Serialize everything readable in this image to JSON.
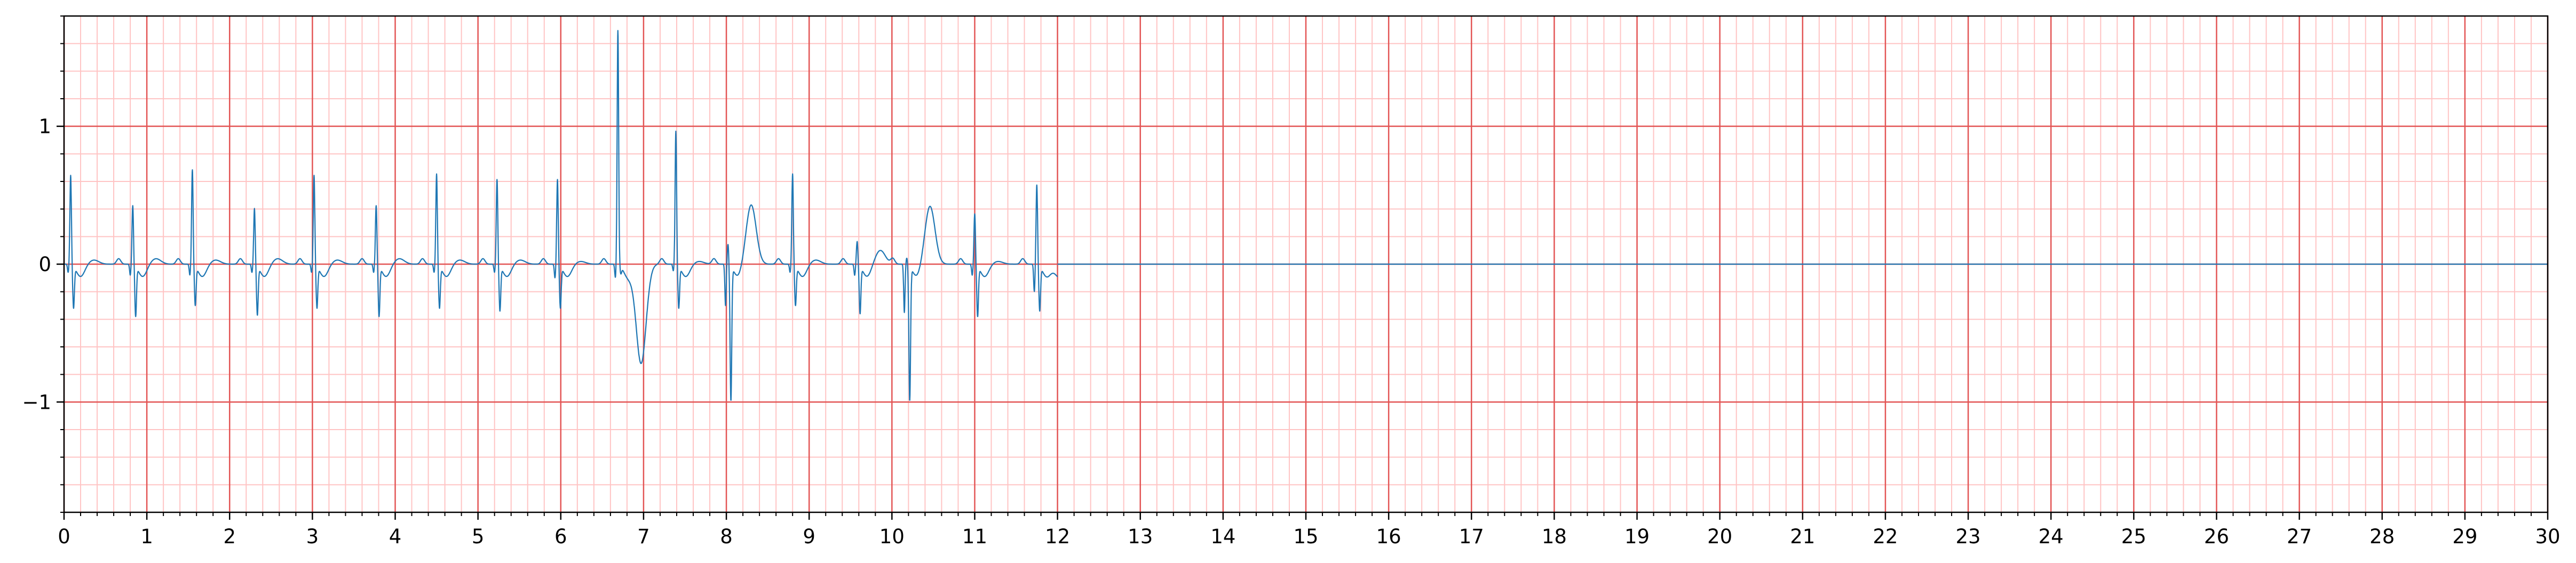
{
  "chart_data": {
    "type": "line",
    "title": "",
    "xlabel": "",
    "ylabel": "",
    "xlim": [
      0,
      30
    ],
    "ylim": [
      -1.8,
      1.8
    ],
    "x_ticks": [
      0,
      1,
      2,
      3,
      4,
      5,
      6,
      7,
      8,
      9,
      10,
      11,
      12,
      13,
      14,
      15,
      16,
      17,
      18,
      19,
      20,
      21,
      22,
      23,
      24,
      25,
      26,
      27,
      28,
      29,
      30
    ],
    "x_tick_labels": [
      "0",
      "1",
      "2",
      "3",
      "4",
      "5",
      "6",
      "7",
      "8",
      "9",
      "10",
      "11",
      "12",
      "13",
      "14",
      "15",
      "16",
      "17",
      "18",
      "19",
      "20",
      "21",
      "22",
      "23",
      "24",
      "25",
      "26",
      "27",
      "28",
      "29",
      "30"
    ],
    "y_ticks": [
      -1,
      0,
      1
    ],
    "y_tick_labels": [
      "−1",
      "0",
      "1"
    ],
    "x_major_step": 1,
    "x_minor_step": 0.2,
    "y_major_step": 1,
    "y_minor_step": 0.2,
    "grid": true,
    "colors": {
      "line": "#1f77b4",
      "grid_major": "#e35555",
      "grid_minor": "#ffc4c4",
      "axes": "#000000"
    },
    "series": [
      {
        "name": "",
        "baseline": 0,
        "beats": [
          {
            "t": 0.08,
            "r": 0.65,
            "s": -0.3,
            "q": -0.06,
            "tw": 0.03
          },
          {
            "t": 0.83,
            "r": 0.43,
            "s": -0.36,
            "q": -0.08,
            "tw": 0.04
          },
          {
            "t": 1.55,
            "r": 0.69,
            "s": -0.28,
            "q": -0.08,
            "tw": 0.03
          },
          {
            "t": 2.3,
            "r": 0.41,
            "s": -0.35,
            "q": -0.06,
            "tw": 0.04
          },
          {
            "t": 3.02,
            "r": 0.65,
            "s": -0.3,
            "q": -0.06,
            "tw": 0.03
          },
          {
            "t": 3.77,
            "r": 0.43,
            "s": -0.36,
            "q": -0.06,
            "tw": 0.04
          },
          {
            "t": 4.5,
            "r": 0.66,
            "s": -0.3,
            "q": -0.06,
            "tw": 0.03
          },
          {
            "t": 5.23,
            "r": 0.62,
            "s": -0.32,
            "q": -0.06,
            "tw": 0.03
          },
          {
            "t": 5.96,
            "r": 0.62,
            "s": -0.3,
            "q": -0.1,
            "tw": 0.02
          },
          {
            "t": 6.69,
            "r": 1.7,
            "s": -0.05,
            "q": -0.1,
            "tw": -0.72
          },
          {
            "t": 7.39,
            "r": 0.97,
            "s": -0.3,
            "q": -0.05,
            "tw": 0.02
          },
          {
            "t": 8.02,
            "r": 0.15,
            "s": -0.97,
            "q": -0.3,
            "tw": 0.43
          },
          {
            "t": 8.8,
            "r": 0.66,
            "s": -0.28,
            "q": -0.06,
            "tw": 0.03
          },
          {
            "t": 9.58,
            "r": 0.17,
            "s": -0.34,
            "q": -0.08,
            "tw": 0.1
          },
          {
            "t": 10.18,
            "r": 0.05,
            "s": -0.97,
            "q": -0.35,
            "tw": 0.42
          },
          {
            "t": 11.0,
            "r": 0.37,
            "s": -0.36,
            "q": -0.08,
            "tw": 0.02
          },
          {
            "t": 11.75,
            "r": 0.58,
            "s": -0.32,
            "q": -0.2,
            "tw": -0.1
          }
        ],
        "signal_end": 12.0,
        "flat_after": [
          12.0,
          30.0
        ]
      }
    ]
  }
}
